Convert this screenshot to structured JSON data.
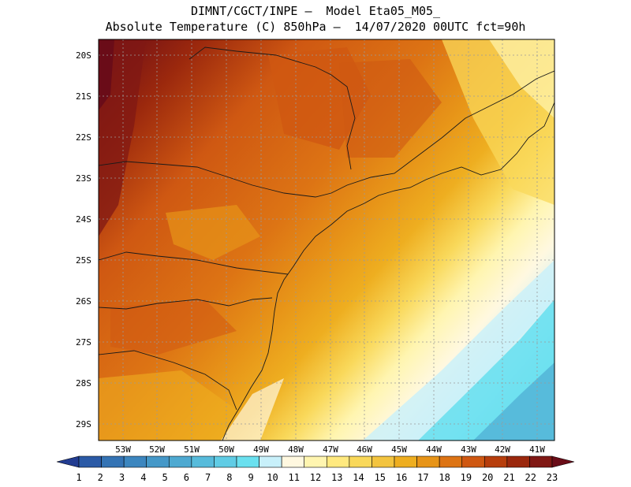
{
  "header": {
    "line1": "DIMNT/CGCT/INPE —  Model Eta05_M05_",
    "line2": "Absolute Temperature (C) 850hPa —  14/07/2020 00UTC fct=90h"
  },
  "map": {
    "lat_labels": [
      "20S",
      "21S",
      "22S",
      "23S",
      "24S",
      "25S",
      "26S",
      "27S",
      "28S",
      "29S"
    ],
    "lon_labels": [
      "53W",
      "52W",
      "51W",
      "50W",
      "49W",
      "48W",
      "47W",
      "46W",
      "45W",
      "44W",
      "43W",
      "42W",
      "41W"
    ],
    "extent": {
      "lon_min": -53.8,
      "lon_max": -40.5,
      "lat_min": -29.4,
      "lat_max": -19.8
    }
  },
  "colorbar": {
    "labels": [
      "1",
      "2",
      "3",
      "4",
      "5",
      "6",
      "7",
      "8",
      "9",
      "10",
      "11",
      "12",
      "13",
      "14",
      "15",
      "16",
      "17",
      "18",
      "19",
      "20",
      "21",
      "22",
      "23"
    ],
    "colors": [
      "#223c91",
      "#2b5aa6",
      "#3473b4",
      "#3c86bf",
      "#4598c8",
      "#4ea9d1",
      "#57bbdb",
      "#60cce5",
      "#6ae0ef",
      "#c8f0fa",
      "#fff8e0",
      "#fff5b0",
      "#ffe97f",
      "#f9d85a",
      "#f3c43f",
      "#eeae20",
      "#e79418",
      "#dd7414",
      "#cf5812",
      "#b73e0c",
      "#9b280d",
      "#801814",
      "#6a0c18"
    ]
  }
}
